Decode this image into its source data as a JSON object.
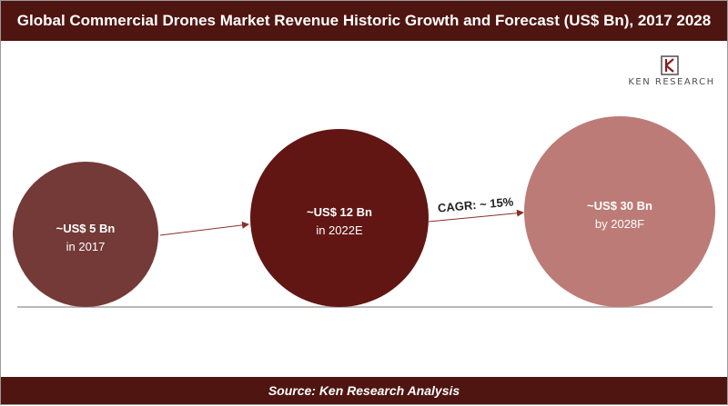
{
  "header": {
    "title": "Global Commercial Drones Market Revenue Historic Growth and Forecast (US$ Bn), 2017 2028"
  },
  "footer": {
    "source": "Source: Ken Research Analysis"
  },
  "logo": {
    "text": "KEN RESEARCH",
    "icon": "ken-research-k-icon"
  },
  "chart_data": {
    "type": "bubble",
    "title": "Global Commercial Drones Market Revenue Historic Growth and Forecast (US$ Bn), 2017 2028",
    "categories": [
      "2017",
      "2022E",
      "2028F"
    ],
    "values": [
      5,
      12,
      30
    ],
    "unit": "US$ Bn",
    "points": [
      {
        "year": "2017",
        "value": 5,
        "value_label": "~US$ 5 Bn",
        "year_label": "in 2017",
        "color": "#743a37"
      },
      {
        "year": "2022E",
        "value": 12,
        "value_label": "~US$ 12 Bn",
        "year_label": "in 2022E",
        "color": "#611614"
      },
      {
        "year": "2028F",
        "value": 30,
        "value_label": "~US$ 30 Bn",
        "year_label": "by 2028F",
        "color": "#bc7b76"
      }
    ],
    "cagr_label": "CAGR: ~ 15%",
    "colors": {
      "header": "#4f1511",
      "arrow": "#8a2e2a",
      "baseline": "#a89e9e"
    }
  }
}
